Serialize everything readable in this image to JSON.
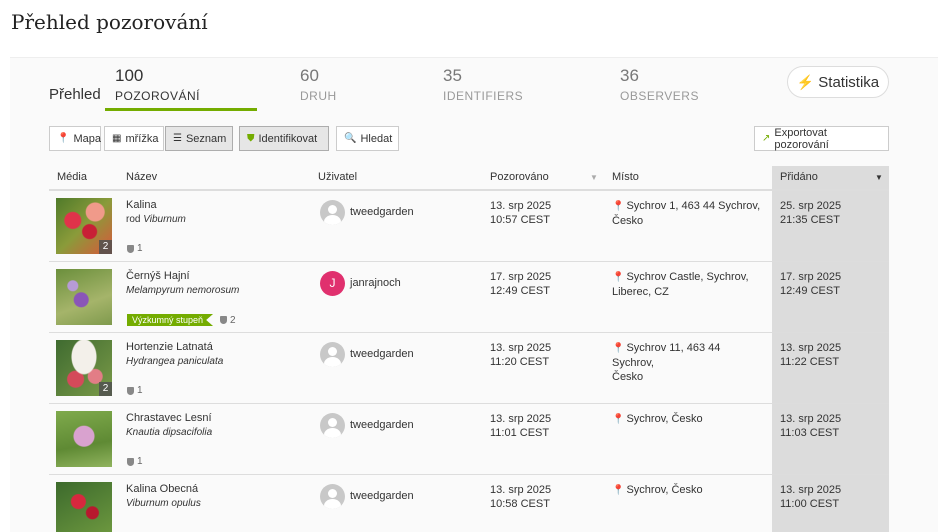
{
  "page": {
    "title": "Přehled pozorování"
  },
  "stats": {
    "overview_label": "Přehled",
    "items": [
      {
        "num": "100",
        "label": "POZOROVÁNÍ"
      },
      {
        "num": "60",
        "label": "DRUH"
      },
      {
        "num": "35",
        "label": "IDENTIFIERS"
      },
      {
        "num": "36",
        "label": "OBSERVERS"
      }
    ],
    "button_label": "Statistika"
  },
  "toolbar": {
    "map": "Mapa",
    "grid": "mřížka",
    "list": "Seznam",
    "identify": "Identifikovat",
    "search": "Hledat",
    "export": "Exportovat pozorování"
  },
  "table": {
    "headers": {
      "media": "Média",
      "name": "Název",
      "user": "Uživatel",
      "observed": "Pozorováno",
      "place": "Místo",
      "added": "Přidáno"
    },
    "rows": [
      {
        "photo_count": "2",
        "name": "Kalina",
        "sci_prefix": "rod ",
        "sci": "Viburnum",
        "grade": "",
        "ids": "1",
        "user": "tweedgarden",
        "avatar_letter": "",
        "obs_date": "13. srp 2025",
        "obs_time": "10:57 CEST",
        "place_line1": "Sychrov 1, 463 44 Sychrov,",
        "place_line2": "Česko",
        "added_date": "25. srp 2025",
        "added_time": "21:35 CEST"
      },
      {
        "photo_count": "",
        "name": "Černýš Hajní",
        "sci_prefix": "",
        "sci": "Melampyrum nemorosum",
        "grade": "Výzkumný stupeň",
        "ids": "2",
        "user": "janrajnoch",
        "avatar_letter": "J",
        "obs_date": "17. srp 2025",
        "obs_time": "12:49 CEST",
        "place_line1": "Sychrov Castle, Sychrov,",
        "place_line2": "Liberec, CZ",
        "added_date": "17. srp 2025",
        "added_time": "12:49 CEST"
      },
      {
        "photo_count": "2",
        "name": "Hortenzie Latnatá",
        "sci_prefix": "",
        "sci": "Hydrangea paniculata",
        "grade": "",
        "ids": "1",
        "user": "tweedgarden",
        "avatar_letter": "",
        "obs_date": "13. srp 2025",
        "obs_time": "11:20 CEST",
        "place_line1": "Sychrov 11, 463 44 Sychrov,",
        "place_line2": "Česko",
        "added_date": "13. srp 2025",
        "added_time": "11:22 CEST"
      },
      {
        "photo_count": "",
        "name": "Chrastavec Lesní",
        "sci_prefix": "",
        "sci": "Knautia dipsacifolia",
        "grade": "",
        "ids": "1",
        "user": "tweedgarden",
        "avatar_letter": "",
        "obs_date": "13. srp 2025",
        "obs_time": "11:01 CEST",
        "place_line1": "Sychrov, Česko",
        "place_line2": "",
        "added_date": "13. srp 2025",
        "added_time": "11:03 CEST"
      },
      {
        "photo_count": "",
        "name": "Kalina Obecná",
        "sci_prefix": "",
        "sci": "Viburnum opulus",
        "grade": "",
        "ids": "",
        "user": "tweedgarden",
        "avatar_letter": "",
        "obs_date": "13. srp 2025",
        "obs_time": "10:58 CEST",
        "place_line1": "Sychrov, Česko",
        "place_line2": "",
        "added_date": "13. srp 2025",
        "added_time": "11:00 CEST"
      }
    ]
  },
  "colors": {
    "accent": "#74ac00",
    "sorted_column": "#dcdcdc",
    "avatar_j": "#e0306e"
  }
}
